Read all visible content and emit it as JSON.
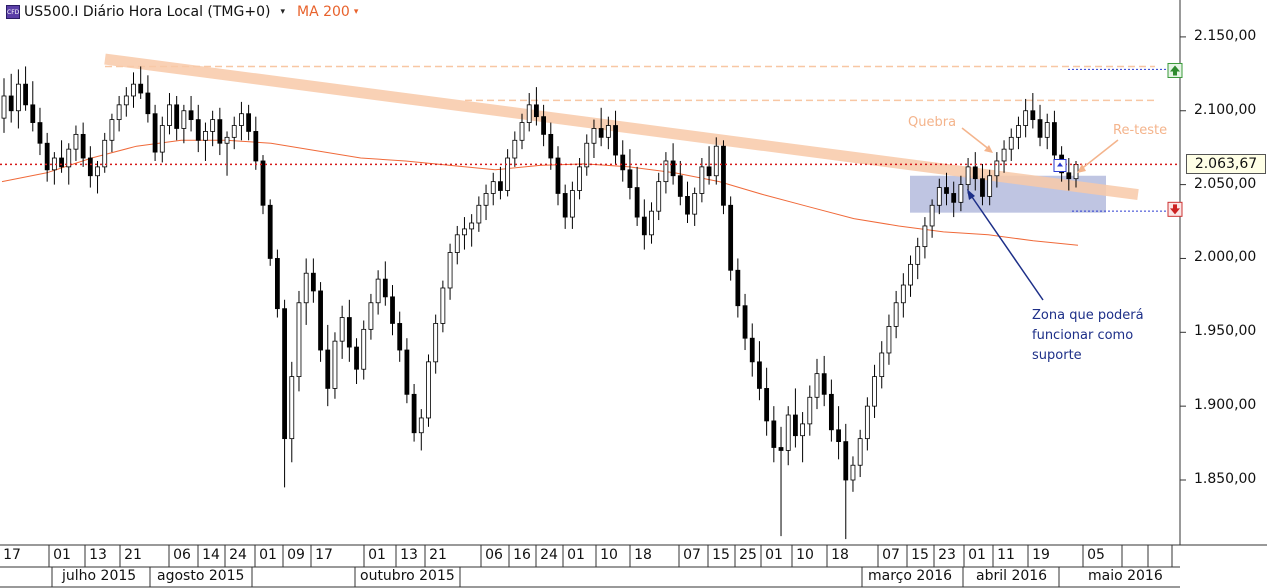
{
  "header": {
    "icon_text": "CFD",
    "symbol": "US500.I Diário Hora Local (TMG+0)",
    "caret": "▾",
    "indicator": "MA 200",
    "indicator_caret": "▾"
  },
  "annotations": {
    "quebra": "Quebra",
    "reteste": "Re-teste",
    "zona": "Zona que poderá funcionar como suporte"
  },
  "price_label": "2.063,67",
  "chart_data": {
    "type": "candlestick",
    "instrument": "US500.I",
    "timeframe": "Diário",
    "timezone": "Hora Local (TMG+0)",
    "ylim": [
      1810,
      2165
    ],
    "y_ticks": [
      1850,
      1900,
      1950,
      2000,
      2050,
      2100,
      2150
    ],
    "y_tick_labels": [
      "1.850,00",
      "1.900,00",
      "1.950,00",
      "2.000,00",
      "2.050,00",
      "2.100,00",
      "2.150,00"
    ],
    "current_price": 2063.67,
    "x_day_ticks": [
      "17",
      "01",
      "13",
      "21",
      "06",
      "14",
      "24",
      "01",
      "09",
      "17",
      "01",
      "13",
      "21",
      "06",
      "16",
      "24",
      "01",
      "10",
      "18",
      "07",
      "15",
      "25",
      "01",
      "10",
      "18",
      "07",
      "15",
      "23",
      "01",
      "11",
      "19",
      "05"
    ],
    "x_month_labels": [
      "julho 2015",
      "agosto 2015",
      "outubro 2015",
      "março 2016",
      "abril 2016",
      "maio 2016"
    ],
    "ohlc": [
      [
        2095,
        2122,
        2085,
        2110
      ],
      [
        2110,
        2125,
        2092,
        2100
      ],
      [
        2100,
        2128,
        2088,
        2118
      ],
      [
        2118,
        2130,
        2100,
        2104
      ],
      [
        2104,
        2120,
        2086,
        2092
      ],
      [
        2092,
        2102,
        2070,
        2078
      ],
      [
        2078,
        2085,
        2052,
        2060
      ],
      [
        2060,
        2072,
        2050,
        2068
      ],
      [
        2068,
        2080,
        2058,
        2062
      ],
      [
        2062,
        2078,
        2050,
        2074
      ],
      [
        2074,
        2090,
        2066,
        2084
      ],
      [
        2084,
        2092,
        2062,
        2068
      ],
      [
        2068,
        2076,
        2048,
        2056
      ],
      [
        2056,
        2066,
        2044,
        2062
      ],
      [
        2062,
        2085,
        2058,
        2080
      ],
      [
        2080,
        2098,
        2072,
        2094
      ],
      [
        2094,
        2110,
        2086,
        2104
      ],
      [
        2104,
        2116,
        2096,
        2110
      ],
      [
        2110,
        2126,
        2102,
        2118
      ],
      [
        2118,
        2130,
        2108,
        2112
      ],
      [
        2112,
        2124,
        2092,
        2098
      ],
      [
        2098,
        2104,
        2066,
        2072
      ],
      [
        2072,
        2096,
        2065,
        2090
      ],
      [
        2090,
        2112,
        2084,
        2104
      ],
      [
        2104,
        2110,
        2080,
        2088
      ],
      [
        2088,
        2104,
        2078,
        2100
      ],
      [
        2100,
        2110,
        2086,
        2094
      ],
      [
        2094,
        2104,
        2072,
        2080
      ],
      [
        2080,
        2092,
        2066,
        2086
      ],
      [
        2086,
        2100,
        2076,
        2094
      ],
      [
        2094,
        2102,
        2070,
        2078
      ],
      [
        2078,
        2086,
        2056,
        2082
      ],
      [
        2082,
        2096,
        2074,
        2090
      ],
      [
        2090,
        2106,
        2080,
        2098
      ],
      [
        2098,
        2104,
        2080,
        2086
      ],
      [
        2086,
        2096,
        2060,
        2066
      ],
      [
        2066,
        2070,
        2030,
        2036
      ],
      [
        2036,
        2040,
        1995,
        2000
      ],
      [
        2000,
        2006,
        1960,
        1966
      ],
      [
        1966,
        1972,
        1845,
        1878
      ],
      [
        1878,
        1930,
        1862,
        1920
      ],
      [
        1920,
        1978,
        1910,
        1970
      ],
      [
        1970,
        2000,
        1955,
        1990
      ],
      [
        1990,
        2000,
        1970,
        1978
      ],
      [
        1978,
        1984,
        1930,
        1938
      ],
      [
        1938,
        1955,
        1900,
        1912
      ],
      [
        1912,
        1950,
        1905,
        1944
      ],
      [
        1944,
        1968,
        1932,
        1960
      ],
      [
        1960,
        1972,
        1930,
        1940
      ],
      [
        1940,
        1946,
        1915,
        1925
      ],
      [
        1925,
        1958,
        1918,
        1952
      ],
      [
        1952,
        1976,
        1945,
        1970
      ],
      [
        1970,
        1992,
        1962,
        1986
      ],
      [
        1986,
        1998,
        1968,
        1974
      ],
      [
        1974,
        1982,
        1948,
        1956
      ],
      [
        1956,
        1964,
        1930,
        1938
      ],
      [
        1938,
        1946,
        1902,
        1908
      ],
      [
        1908,
        1915,
        1876,
        1882
      ],
      [
        1882,
        1898,
        1870,
        1892
      ],
      [
        1892,
        1935,
        1886,
        1930
      ],
      [
        1930,
        1962,
        1922,
        1956
      ],
      [
        1956,
        1985,
        1950,
        1980
      ],
      [
        1980,
        2010,
        1972,
        2004
      ],
      [
        2004,
        2022,
        1996,
        2016
      ],
      [
        2016,
        2028,
        2006,
        2020
      ],
      [
        2020,
        2030,
        2008,
        2024
      ],
      [
        2024,
        2042,
        2018,
        2036
      ],
      [
        2036,
        2050,
        2026,
        2044
      ],
      [
        2044,
        2058,
        2036,
        2052
      ],
      [
        2052,
        2062,
        2040,
        2046
      ],
      [
        2046,
        2074,
        2042,
        2068
      ],
      [
        2068,
        2086,
        2062,
        2080
      ],
      [
        2080,
        2098,
        2074,
        2092
      ],
      [
        2092,
        2112,
        2086,
        2104
      ],
      [
        2104,
        2116,
        2090,
        2096
      ],
      [
        2096,
        2104,
        2076,
        2084
      ],
      [
        2084,
        2092,
        2060,
        2068
      ],
      [
        2068,
        2076,
        2036,
        2044
      ],
      [
        2044,
        2050,
        2020,
        2028
      ],
      [
        2028,
        2052,
        2020,
        2046
      ],
      [
        2046,
        2068,
        2040,
        2062
      ],
      [
        2062,
        2084,
        2056,
        2078
      ],
      [
        2078,
        2094,
        2068,
        2088
      ],
      [
        2088,
        2102,
        2076,
        2082
      ],
      [
        2082,
        2096,
        2074,
        2090
      ],
      [
        2090,
        2100,
        2064,
        2070
      ],
      [
        2070,
        2080,
        2052,
        2060
      ],
      [
        2060,
        2074,
        2040,
        2048
      ],
      [
        2048,
        2062,
        2022,
        2028
      ],
      [
        2028,
        2040,
        2006,
        2016
      ],
      [
        2016,
        2038,
        2010,
        2032
      ],
      [
        2032,
        2058,
        2026,
        2052
      ],
      [
        2052,
        2072,
        2044,
        2066
      ],
      [
        2066,
        2078,
        2050,
        2056
      ],
      [
        2056,
        2066,
        2036,
        2042
      ],
      [
        2042,
        2052,
        2024,
        2030
      ],
      [
        2030,
        2048,
        2022,
        2044
      ],
      [
        2044,
        2068,
        2038,
        2062
      ],
      [
        2062,
        2076,
        2050,
        2056
      ],
      [
        2056,
        2082,
        2050,
        2076
      ],
      [
        2076,
        2080,
        2030,
        2036
      ],
      [
        2036,
        2042,
        1985,
        1992
      ],
      [
        1992,
        2000,
        1960,
        1968
      ],
      [
        1968,
        1976,
        1938,
        1946
      ],
      [
        1946,
        1956,
        1920,
        1930
      ],
      [
        1930,
        1944,
        1904,
        1912
      ],
      [
        1912,
        1926,
        1880,
        1890
      ],
      [
        1890,
        1900,
        1862,
        1872
      ],
      [
        1872,
        1886,
        1812,
        1870
      ],
      [
        1870,
        1900,
        1860,
        1894
      ],
      [
        1894,
        1912,
        1872,
        1880
      ],
      [
        1880,
        1896,
        1862,
        1888
      ],
      [
        1888,
        1914,
        1880,
        1906
      ],
      [
        1906,
        1932,
        1898,
        1922
      ],
      [
        1922,
        1934,
        1900,
        1908
      ],
      [
        1908,
        1918,
        1876,
        1884
      ],
      [
        1884,
        1900,
        1864,
        1876
      ],
      [
        1876,
        1888,
        1810,
        1850
      ],
      [
        1850,
        1866,
        1842,
        1860
      ],
      [
        1860,
        1884,
        1852,
        1878
      ],
      [
        1878,
        1906,
        1870,
        1900
      ],
      [
        1900,
        1928,
        1892,
        1920
      ],
      [
        1920,
        1944,
        1912,
        1936
      ],
      [
        1936,
        1962,
        1928,
        1954
      ],
      [
        1954,
        1978,
        1946,
        1970
      ],
      [
        1970,
        1990,
        1960,
        1982
      ],
      [
        1982,
        2002,
        1974,
        1996
      ],
      [
        1996,
        2014,
        1986,
        2008
      ],
      [
        2008,
        2028,
        2000,
        2022
      ],
      [
        2022,
        2040,
        2014,
        2036
      ],
      [
        2036,
        2054,
        2030,
        2048
      ],
      [
        2048,
        2058,
        2036,
        2044
      ],
      [
        2044,
        2052,
        2028,
        2038
      ],
      [
        2038,
        2056,
        2032,
        2050
      ],
      [
        2050,
        2068,
        2044,
        2062
      ],
      [
        2062,
        2072,
        2046,
        2054
      ],
      [
        2054,
        2064,
        2036,
        2042
      ],
      [
        2042,
        2060,
        2036,
        2056
      ],
      [
        2056,
        2072,
        2048,
        2066
      ],
      [
        2066,
        2080,
        2058,
        2074
      ],
      [
        2074,
        2088,
        2066,
        2082
      ],
      [
        2082,
        2096,
        2074,
        2090
      ],
      [
        2090,
        2108,
        2082,
        2100
      ],
      [
        2100,
        2112,
        2088,
        2094
      ],
      [
        2094,
        2104,
        2076,
        2082
      ],
      [
        2082,
        2098,
        2074,
        2092
      ],
      [
        2092,
        2100,
        2064,
        2070
      ],
      [
        2070,
        2076,
        2052,
        2058
      ],
      [
        2058,
        2068,
        2046,
        2054
      ],
      [
        2054,
        2066,
        2048,
        2063.67
      ]
    ],
    "ma200": [
      [
        0,
        2052
      ],
      [
        20,
        2058
      ],
      [
        40,
        2068
      ],
      [
        60,
        2076
      ],
      [
        80,
        2080
      ],
      [
        100,
        2080
      ],
      [
        120,
        2078
      ],
      [
        140,
        2073
      ],
      [
        160,
        2068
      ],
      [
        180,
        2066
      ],
      [
        200,
        2063
      ],
      [
        220,
        2060
      ],
      [
        240,
        2063
      ],
      [
        260,
        2064
      ],
      [
        280,
        2062
      ],
      [
        300,
        2058
      ],
      [
        320,
        2052
      ],
      [
        340,
        2043
      ],
      [
        360,
        2035
      ],
      [
        380,
        2027
      ],
      [
        400,
        2022
      ],
      [
        420,
        2018
      ],
      [
        440,
        2016
      ],
      [
        460,
        2012
      ],
      [
        480,
        2009
      ]
    ],
    "horizontal_levels": [
      {
        "price": 2130,
        "style": "dashed",
        "color": "#f8c7a4"
      },
      {
        "price": 2107,
        "style": "dashed",
        "color": "#f8c7a4"
      },
      {
        "price": 2063.67,
        "style": "dotted",
        "color": "#d61818"
      }
    ],
    "trendline": {
      "from": [
        0,
        2135
      ],
      "to": [
        1,
        2050
      ],
      "color": "#f8c9a8"
    },
    "support_zone": {
      "top": 2056,
      "bottom": 2031,
      "color": "#aab2d8"
    }
  }
}
